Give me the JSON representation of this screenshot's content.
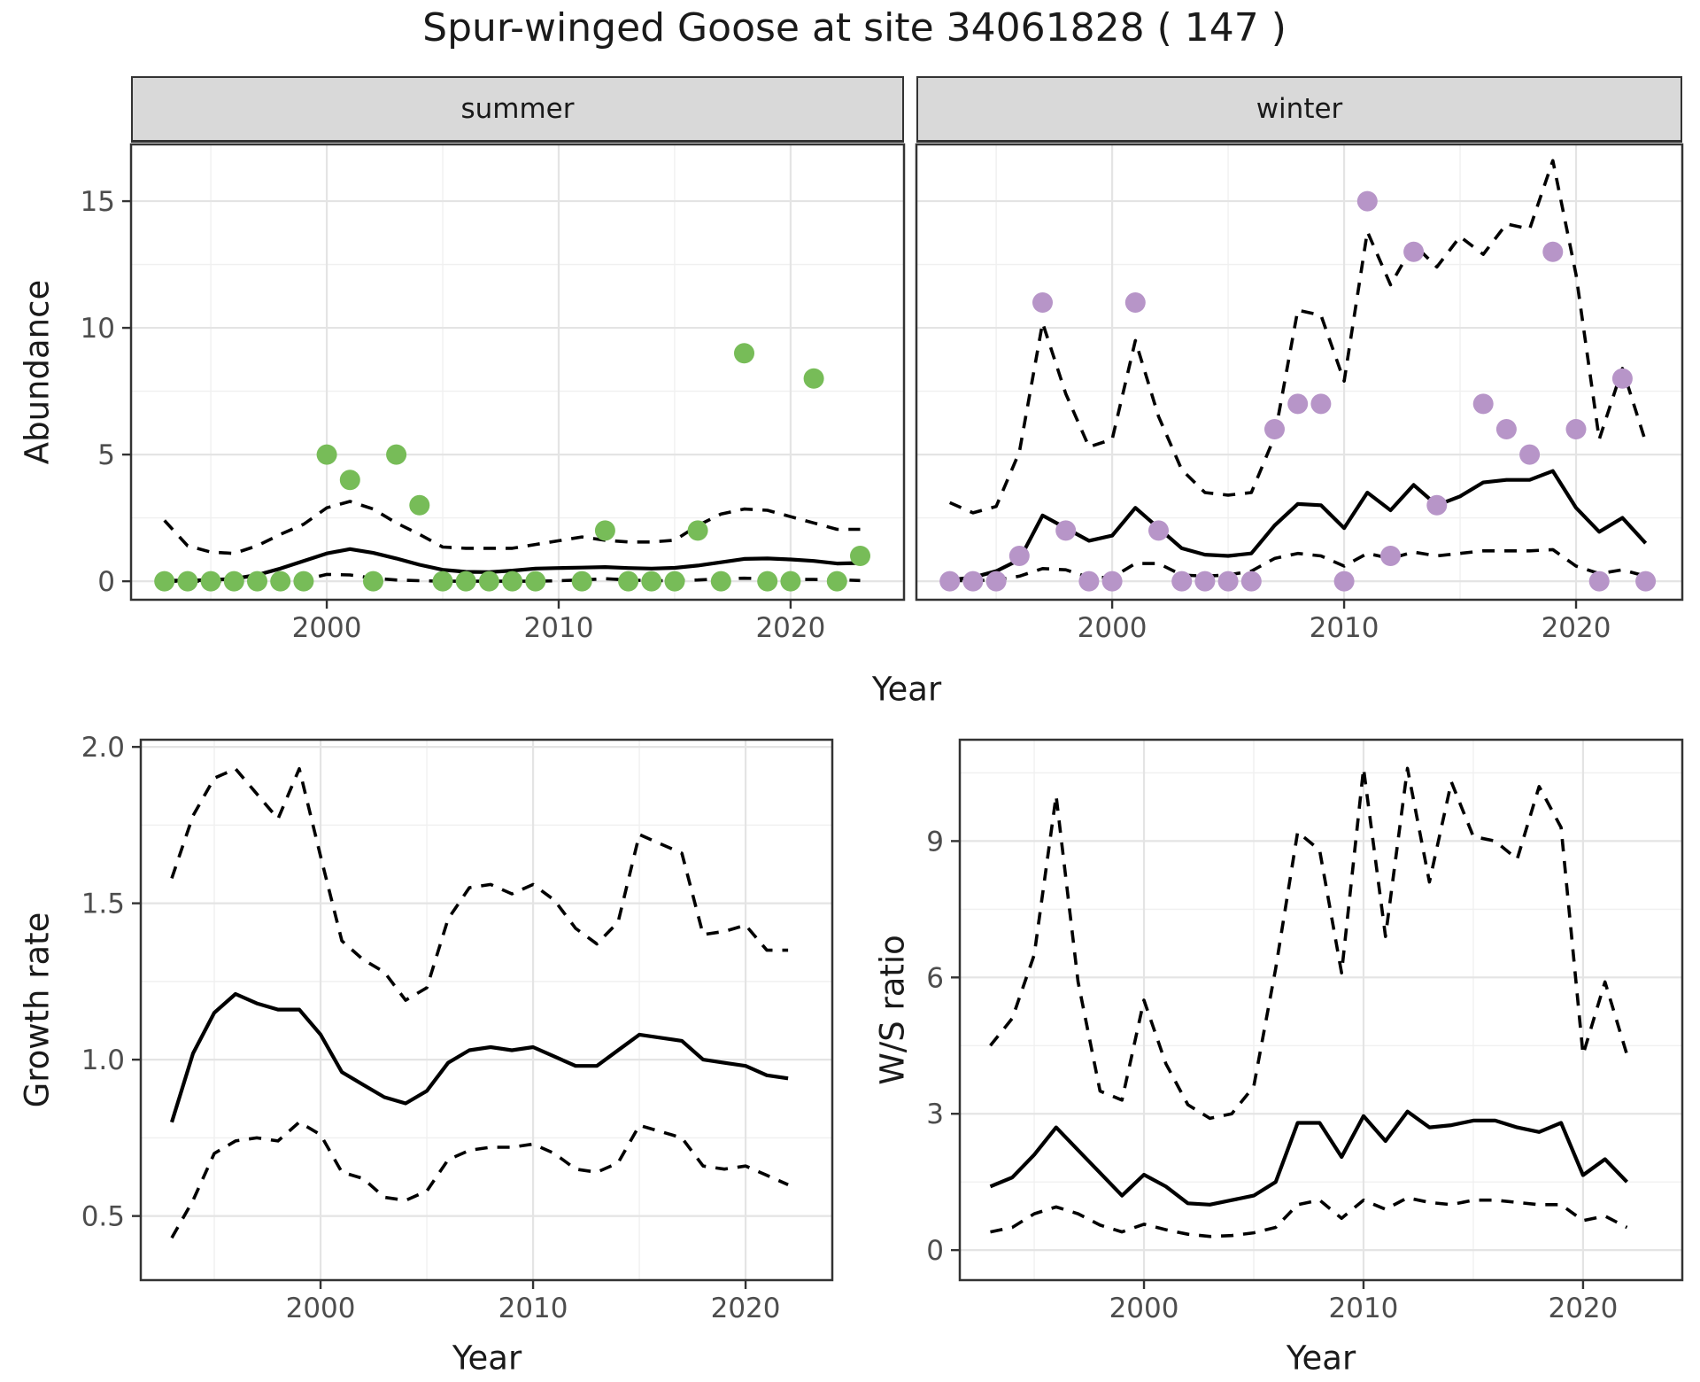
{
  "title": "Spur-winged Goose at site 34061828 ( 147 )",
  "facets": [
    {
      "label": "summer"
    },
    {
      "label": "winter"
    }
  ],
  "colors": {
    "summer_point": "#77BC58",
    "winter_point": "#B795C8",
    "line": "#000000",
    "strip_bg": "#d9d9d9",
    "panel_border": "#333333",
    "grid_major": "#e4e4e4",
    "grid_minor": "#f0f0f0",
    "tick_text": "#4d4d4d"
  },
  "chart_data": [
    {
      "type": "line",
      "facet": "summer",
      "xlabel": "Year",
      "ylabel": "Abundance",
      "xlim": [
        1991.56,
        2024.89
      ],
      "ylim": [
        -0.73,
        17.24
      ],
      "xticks": [
        2000,
        2010,
        2020
      ],
      "xtick_labels": [
        "2000",
        "2010",
        "2020"
      ],
      "yticks": [
        0,
        5,
        10,
        15
      ],
      "ytick_labels": [
        "0",
        "5",
        "10",
        "15"
      ],
      "x": [
        1993,
        1994,
        1995,
        1996,
        1997,
        1998,
        1999,
        2000,
        2001,
        2002,
        2003,
        2004,
        2005,
        2006,
        2007,
        2008,
        2009,
        2010,
        2011,
        2012,
        2013,
        2014,
        2015,
        2016,
        2017,
        2018,
        2019,
        2020,
        2021,
        2022,
        2023
      ],
      "series": [
        {
          "name": "upper_ci",
          "style": "dashed",
          "y": [
            2.4,
            1.4,
            1.15,
            1.1,
            1.4,
            1.85,
            2.25,
            2.9,
            3.15,
            2.85,
            2.3,
            1.85,
            1.35,
            1.3,
            1.3,
            1.3,
            1.45,
            1.6,
            1.75,
            1.62,
            1.55,
            1.55,
            1.62,
            2.2,
            2.65,
            2.85,
            2.8,
            2.55,
            2.3,
            2.05,
            2.05
          ]
        },
        {
          "name": "lower_ci",
          "style": "dashed",
          "y": [
            0.0,
            0.0,
            0.0,
            0.0,
            0.0,
            0.02,
            0.05,
            0.27,
            0.25,
            0.12,
            0.05,
            0.02,
            0.0,
            0.0,
            0.0,
            0.0,
            0.0,
            0.02,
            0.05,
            0.1,
            0.05,
            0.02,
            0.02,
            0.05,
            0.1,
            0.12,
            0.1,
            0.07,
            0.07,
            0.06,
            0.03
          ]
        },
        {
          "name": "mean",
          "style": "solid",
          "y": [
            0.02,
            0.03,
            0.05,
            0.1,
            0.25,
            0.5,
            0.8,
            1.1,
            1.27,
            1.12,
            0.9,
            0.65,
            0.45,
            0.37,
            0.36,
            0.42,
            0.5,
            0.52,
            0.54,
            0.56,
            0.52,
            0.5,
            0.53,
            0.62,
            0.75,
            0.88,
            0.9,
            0.86,
            0.8,
            0.7,
            0.72
          ]
        },
        {
          "name": "observed_counts",
          "style": "points",
          "color": "#77BC58",
          "x": [
            1993,
            1994,
            1995,
            1996,
            1997,
            1998,
            1999,
            2000,
            2001,
            2002,
            2003,
            2004,
            2005,
            2006,
            2007,
            2008,
            2009,
            2011,
            2012,
            2013,
            2014,
            2015,
            2016,
            2017,
            2018,
            2019,
            2020,
            2021,
            2022,
            2023
          ],
          "y": [
            0,
            0,
            0,
            0,
            0,
            0,
            0,
            5,
            4,
            0,
            5,
            3,
            0,
            0,
            0,
            0,
            0,
            0,
            2,
            0,
            0,
            0,
            2,
            0,
            9,
            0,
            0,
            8,
            0,
            1
          ]
        }
      ]
    },
    {
      "type": "line",
      "facet": "winter",
      "xlabel": "Year",
      "ylabel": "Abundance",
      "xlim": [
        1991.56,
        2024.58
      ],
      "ylim": [
        -0.73,
        17.24
      ],
      "xticks": [
        2000,
        2010,
        2020
      ],
      "xtick_labels": [
        "2000",
        "2010",
        "2020"
      ],
      "yticks": [
        0,
        5,
        10,
        15
      ],
      "ytick_labels": [
        "0",
        "5",
        "10",
        "15"
      ],
      "x": [
        1993,
        1994,
        1995,
        1996,
        1997,
        1998,
        1999,
        2000,
        2001,
        2002,
        2003,
        2004,
        2005,
        2006,
        2007,
        2008,
        2009,
        2010,
        2011,
        2012,
        2013,
        2014,
        2015,
        2016,
        2017,
        2018,
        2019,
        2020,
        2021,
        2022,
        2023
      ],
      "series": [
        {
          "name": "upper_ci",
          "style": "dashed",
          "y": [
            3.1,
            2.7,
            2.95,
            5.1,
            10.2,
            7.4,
            5.3,
            5.6,
            9.5,
            6.5,
            4.4,
            3.5,
            3.4,
            3.5,
            5.7,
            10.7,
            10.5,
            7.9,
            13.8,
            11.7,
            13.3,
            12.4,
            13.6,
            12.9,
            14.1,
            13.9,
            16.6,
            12.1,
            5.6,
            8.4,
            5.5
          ]
        },
        {
          "name": "lower_ci",
          "style": "dashed",
          "y": [
            0.02,
            0.02,
            0.05,
            0.2,
            0.5,
            0.45,
            0.15,
            0.15,
            0.7,
            0.7,
            0.25,
            0.2,
            0.25,
            0.4,
            0.9,
            1.1,
            1.0,
            0.6,
            1.1,
            0.9,
            1.15,
            1.0,
            1.1,
            1.2,
            1.2,
            1.2,
            1.25,
            0.6,
            0.3,
            0.45,
            0.2
          ]
        },
        {
          "name": "mean",
          "style": "solid",
          "y": [
            0.05,
            0.15,
            0.4,
            0.85,
            2.6,
            2.1,
            1.6,
            1.8,
            2.9,
            2.1,
            1.3,
            1.05,
            1.0,
            1.1,
            2.2,
            3.05,
            3.0,
            2.1,
            3.5,
            2.8,
            3.8,
            3.0,
            3.35,
            3.9,
            4.0,
            4.0,
            4.35,
            2.9,
            1.95,
            2.5,
            1.5
          ]
        },
        {
          "name": "observed_counts",
          "style": "points",
          "color": "#B795C8",
          "x": [
            1993,
            1994,
            1995,
            1996,
            1997,
            1998,
            1999,
            2000,
            2001,
            2002,
            2003,
            2004,
            2005,
            2006,
            2007,
            2008,
            2009,
            2010,
            2011,
            2012,
            2013,
            2014,
            2016,
            2017,
            2018,
            2019,
            2020,
            2021,
            2022,
            2023
          ],
          "y": [
            0,
            0,
            0,
            1,
            11,
            2,
            0,
            0,
            11,
            2,
            0,
            0,
            0,
            0,
            6,
            7,
            7,
            0,
            15,
            1,
            13,
            3,
            7,
            6,
            5,
            13,
            6,
            0,
            8,
            0
          ]
        }
      ]
    },
    {
      "type": "line",
      "facet": null,
      "xlabel": "Year",
      "ylabel": "Growth rate",
      "xlim": [
        1991.54,
        2024.08
      ],
      "ylim": [
        0.295,
        2.023
      ],
      "xticks": [
        2000,
        2010,
        2020
      ],
      "xtick_labels": [
        "2000",
        "2010",
        "2020"
      ],
      "yticks": [
        0.5,
        1.0,
        1.5,
        2.0
      ],
      "ytick_labels": [
        "0.5",
        "1.0",
        "1.5",
        "2.0"
      ],
      "x": [
        1993,
        1994,
        1995,
        1996,
        1997,
        1998,
        1999,
        2000,
        2001,
        2002,
        2003,
        2004,
        2005,
        2006,
        2007,
        2008,
        2009,
        2010,
        2011,
        2012,
        2013,
        2014,
        2015,
        2016,
        2017,
        2018,
        2019,
        2020,
        2021,
        2022
      ],
      "series": [
        {
          "name": "upper_ci",
          "style": "dashed",
          "y": [
            1.58,
            1.78,
            1.9,
            1.93,
            1.85,
            1.77,
            1.93,
            1.65,
            1.38,
            1.32,
            1.28,
            1.19,
            1.23,
            1.45,
            1.55,
            1.56,
            1.53,
            1.56,
            1.51,
            1.42,
            1.37,
            1.44,
            1.72,
            1.69,
            1.66,
            1.4,
            1.41,
            1.43,
            1.35,
            1.35
          ]
        },
        {
          "name": "lower_ci",
          "style": "dashed",
          "y": [
            0.43,
            0.55,
            0.7,
            0.74,
            0.75,
            0.74,
            0.8,
            0.76,
            0.64,
            0.62,
            0.56,
            0.55,
            0.58,
            0.68,
            0.71,
            0.72,
            0.72,
            0.73,
            0.7,
            0.65,
            0.64,
            0.67,
            0.79,
            0.77,
            0.75,
            0.66,
            0.65,
            0.66,
            0.63,
            0.6
          ]
        },
        {
          "name": "mean",
          "style": "solid",
          "y": [
            0.8,
            1.02,
            1.15,
            1.21,
            1.18,
            1.16,
            1.16,
            1.08,
            0.96,
            0.92,
            0.88,
            0.86,
            0.9,
            0.99,
            1.03,
            1.04,
            1.03,
            1.04,
            1.01,
            0.98,
            0.98,
            1.03,
            1.08,
            1.07,
            1.06,
            1.0,
            0.99,
            0.98,
            0.95,
            0.94
          ]
        }
      ]
    },
    {
      "type": "line",
      "facet": null,
      "xlabel": "Year",
      "ylabel": "W/S ratio",
      "xlim": [
        1991.61,
        2024.52
      ],
      "ylim": [
        -0.66,
        11.23
      ],
      "xticks": [
        2000,
        2010,
        2020
      ],
      "xtick_labels": [
        "2000",
        "2010",
        "2020"
      ],
      "yticks": [
        0,
        3,
        6,
        9
      ],
      "ytick_labels": [
        "0",
        "3",
        "6",
        "9"
      ],
      "x": [
        1993,
        1994,
        1995,
        1996,
        1997,
        1998,
        1999,
        2000,
        2001,
        2002,
        2003,
        2004,
        2005,
        2006,
        2007,
        2008,
        2009,
        2010,
        2011,
        2012,
        2013,
        2014,
        2015,
        2016,
        2017,
        2018,
        2019,
        2020,
        2021,
        2022
      ],
      "series": [
        {
          "name": "upper_ci",
          "style": "dashed",
          "y": [
            4.5,
            5.1,
            6.5,
            10.0,
            5.9,
            3.5,
            3.3,
            5.5,
            4.1,
            3.2,
            2.9,
            3.0,
            3.6,
            6.2,
            9.2,
            8.8,
            6.1,
            10.6,
            6.9,
            10.6,
            8.1,
            10.3,
            9.1,
            9.0,
            8.6,
            10.2,
            9.3,
            4.3,
            5.9,
            4.3
          ]
        },
        {
          "name": "lower_ci",
          "style": "dashed",
          "y": [
            0.4,
            0.5,
            0.8,
            0.95,
            0.8,
            0.55,
            0.4,
            0.57,
            0.45,
            0.35,
            0.3,
            0.32,
            0.38,
            0.5,
            1.0,
            1.1,
            0.7,
            1.1,
            0.9,
            1.15,
            1.05,
            1.0,
            1.1,
            1.1,
            1.05,
            1.0,
            1.0,
            0.65,
            0.75,
            0.5
          ]
        },
        {
          "name": "mean",
          "style": "solid",
          "y": [
            1.4,
            1.6,
            2.1,
            2.7,
            2.2,
            1.7,
            1.2,
            1.66,
            1.4,
            1.03,
            1.0,
            1.1,
            1.2,
            1.5,
            2.8,
            2.8,
            2.05,
            2.95,
            2.4,
            3.05,
            2.7,
            2.75,
            2.85,
            2.85,
            2.7,
            2.6,
            2.8,
            1.65,
            2.0,
            1.5
          ]
        }
      ]
    }
  ]
}
